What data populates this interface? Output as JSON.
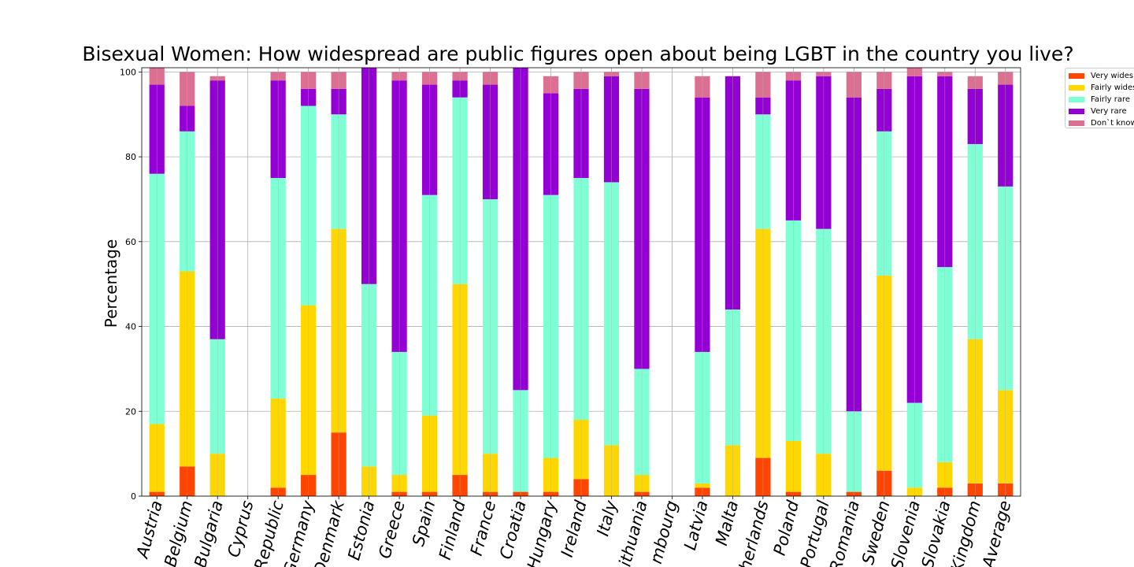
{
  "chart_data": {
    "type": "bar",
    "stacked": true,
    "title": "Bisexual Women: How widespread are public figures open about being LGBT in the country you live?",
    "xlabel": "",
    "ylabel": "Percentage",
    "ylim": [
      0,
      101
    ],
    "yticks": [
      0,
      20,
      40,
      60,
      80,
      100
    ],
    "grid": true,
    "legend_position": "outside-top-right",
    "categories": [
      "Austria",
      "Belgium",
      "Bulgaria",
      "Cyprus",
      "Republic",
      "Germany",
      "Denmark",
      "Estonia",
      "Greece",
      "Spain",
      "Finland",
      "France",
      "Croatia",
      "Hungary",
      "Ireland",
      "Italy",
      "Lithuania",
      "mbourg",
      "Latvia",
      "Malta",
      "herlands",
      "Poland",
      "Portugal",
      "Romania",
      "Sweden",
      "Slovenia",
      "Slovakia",
      "Kingdom",
      "Average"
    ],
    "series": [
      {
        "name": "Very widesp",
        "color": "#ff4500",
        "values": [
          1,
          7,
          0,
          0,
          2,
          5,
          15,
          0,
          1,
          1,
          5,
          1,
          1,
          1,
          4,
          0,
          1,
          0,
          2,
          0,
          9,
          1,
          0,
          1,
          6,
          0,
          2,
          3,
          3
        ]
      },
      {
        "name": "Fairly wides",
        "color": "#ffd700",
        "values": [
          16,
          46,
          10,
          0,
          21,
          40,
          48,
          7,
          4,
          18,
          45,
          9,
          0,
          8,
          14,
          12,
          4,
          0,
          1,
          12,
          54,
          12,
          10,
          0,
          46,
          2,
          6,
          34,
          22
        ]
      },
      {
        "name": "Fairly rare",
        "color": "#7fffd4",
        "values": [
          59,
          33,
          27,
          0,
          52,
          47,
          27,
          43,
          29,
          52,
          44,
          60,
          24,
          62,
          57,
          62,
          25,
          0,
          31,
          32,
          27,
          52,
          53,
          19,
          34,
          20,
          46,
          46,
          48
        ]
      },
      {
        "name": "Very rare",
        "color": "#9400d3",
        "values": [
          21,
          6,
          61,
          0,
          23,
          4,
          6,
          51,
          64,
          26,
          4,
          27,
          76,
          24,
          21,
          25,
          66,
          0,
          60,
          55,
          4,
          33,
          36,
          74,
          10,
          77,
          45,
          13,
          24
        ]
      },
      {
        "name": "Don`t know",
        "color": "#db7093",
        "values": [
          4,
          8,
          1,
          0,
          2,
          4,
          4,
          0,
          2,
          3,
          2,
          3,
          0,
          4,
          4,
          1,
          4,
          0,
          5,
          0,
          6,
          2,
          1,
          6,
          4,
          2,
          1,
          3,
          3
        ]
      }
    ]
  }
}
